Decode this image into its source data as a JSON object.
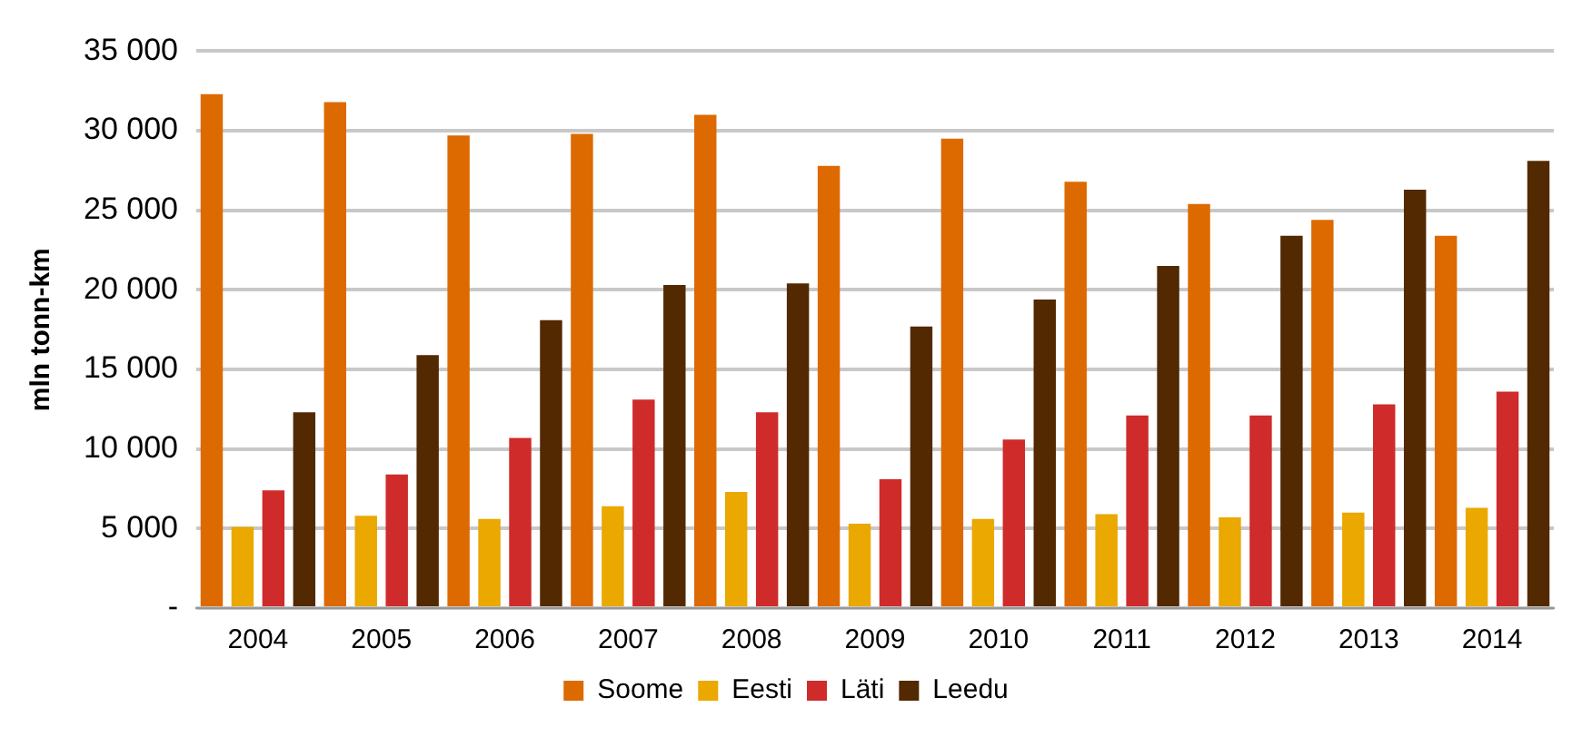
{
  "chart_data": {
    "type": "bar",
    "ylabel": "mln tonn-km",
    "categories": [
      "2004",
      "2005",
      "2006",
      "2007",
      "2008",
      "2009",
      "2010",
      "2011",
      "2012",
      "2013",
      "2014"
    ],
    "series": [
      {
        "name": "Soome",
        "color": "#dd6a00",
        "values": [
          32300,
          31800,
          29700,
          29800,
          31000,
          27800,
          29500,
          26800,
          25400,
          24400,
          23400
        ]
      },
      {
        "name": "Eesti",
        "color": "#eaa800",
        "values": [
          5100,
          5800,
          5600,
          6400,
          7300,
          5300,
          5600,
          5900,
          5700,
          6000,
          6300
        ]
      },
      {
        "name": "Läti",
        "color": "#cf2b2b",
        "values": [
          7400,
          8400,
          10700,
          13100,
          12300,
          8100,
          10600,
          12100,
          12100,
          12800,
          13600
        ]
      },
      {
        "name": "Leedu",
        "color": "#522900",
        "values": [
          12300,
          15900,
          18100,
          20300,
          20400,
          17700,
          19400,
          21500,
          23400,
          26300,
          28100
        ]
      }
    ],
    "ylim": [
      0,
      35000
    ],
    "yticks": [
      {
        "value": 0,
        "label": "-"
      },
      {
        "value": 5000,
        "label": "5 000"
      },
      {
        "value": 10000,
        "label": "10 000"
      },
      {
        "value": 15000,
        "label": "15 000"
      },
      {
        "value": 20000,
        "label": "20 000"
      },
      {
        "value": 25000,
        "label": "25 000"
      },
      {
        "value": 30000,
        "label": "30 000"
      },
      {
        "value": 35000,
        "label": "35 000"
      }
    ],
    "grid": "y",
    "legend": "bottom"
  }
}
